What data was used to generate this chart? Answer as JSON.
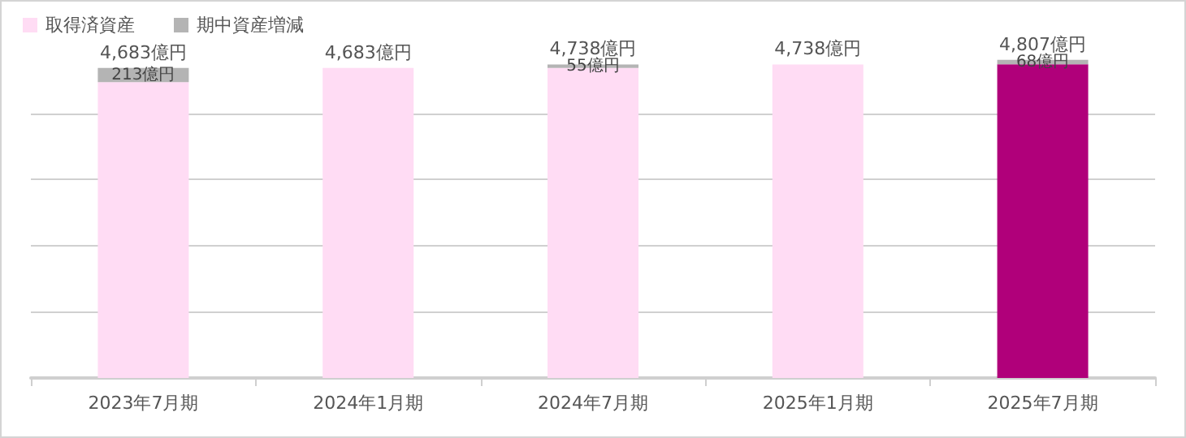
{
  "chart_data": {
    "type": "bar",
    "stacked": true,
    "categories": [
      "2023年7月期",
      "2024年1月期",
      "2024年7月期",
      "2025年1月期",
      "2025年7月期"
    ],
    "series": [
      {
        "name": "取得済資産",
        "color": "#ffdcf4",
        "colors": [
          "#ffdcf4",
          "#ffdcf4",
          "#ffdcf4",
          "#ffdcf4",
          "#b0007a"
        ],
        "values": [
          4470,
          4683,
          4683,
          4738,
          4739
        ]
      },
      {
        "name": "期中資産増減",
        "color": "#b4b4b4",
        "values": [
          213,
          null,
          55,
          null,
          68
        ],
        "value_labels": [
          "213億円",
          null,
          "55億円",
          null,
          "68億円"
        ]
      }
    ],
    "totals": [
      "4,683億円",
      "4,683億円",
      "4,738億円",
      "4,738億円",
      "4,807億円"
    ],
    "yticks": [
      {
        "value": 0,
        "label": null
      },
      {
        "value": 1000,
        "label": null
      },
      {
        "value": 2000,
        "label": null
      },
      {
        "value": 3000,
        "label": null
      },
      {
        "value": 4000,
        "label": null
      }
    ],
    "grid": "y",
    "legend": "top left",
    "tick_labels": "x"
  }
}
